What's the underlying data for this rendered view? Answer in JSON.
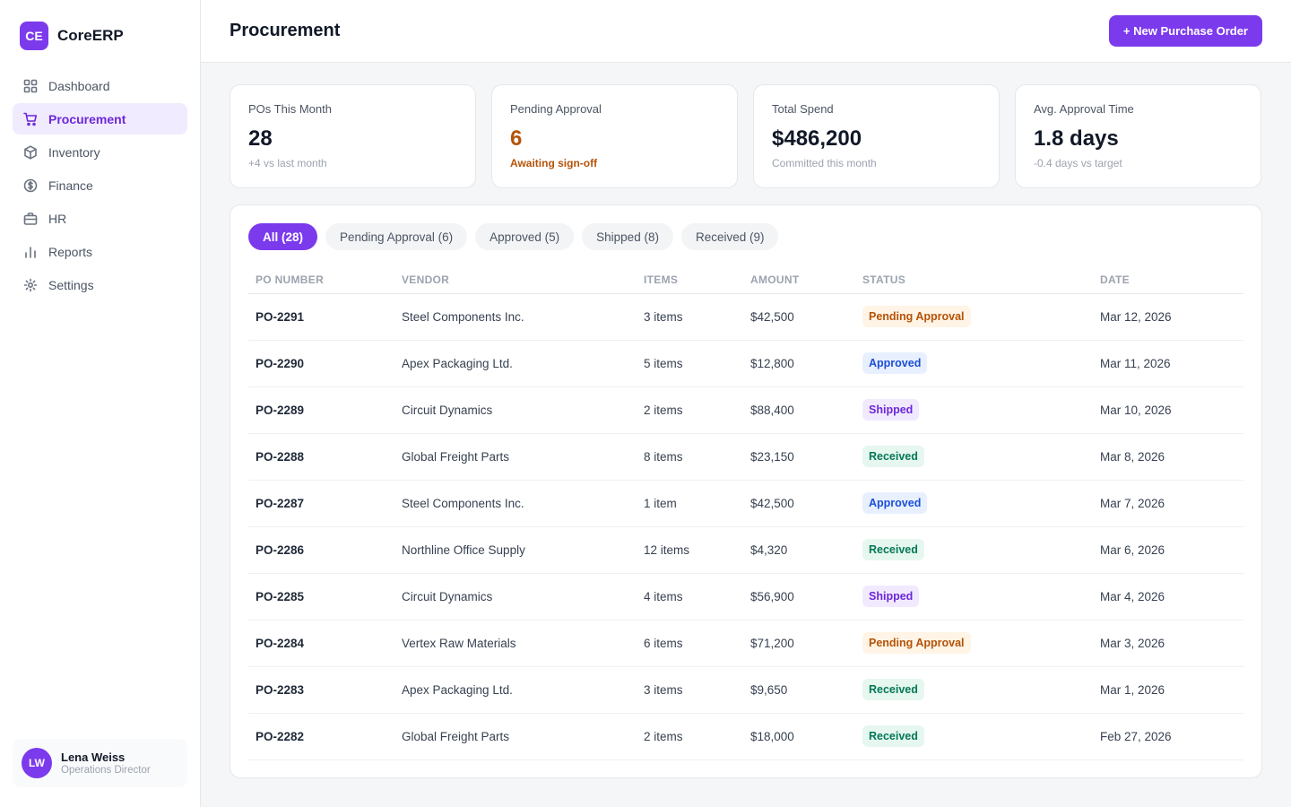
{
  "brand": {
    "logo_text": "CE",
    "name": "CoreERP"
  },
  "sidebar": {
    "items": [
      {
        "label": "Dashboard",
        "icon": "dashboard-icon",
        "active": false
      },
      {
        "label": "Procurement",
        "icon": "cart-icon",
        "active": true
      },
      {
        "label": "Inventory",
        "icon": "box-icon",
        "active": false
      },
      {
        "label": "Finance",
        "icon": "dollar-icon",
        "active": false
      },
      {
        "label": "HR",
        "icon": "briefcase-icon",
        "active": false
      },
      {
        "label": "Reports",
        "icon": "bar-chart-icon",
        "active": false
      },
      {
        "label": "Settings",
        "icon": "gear-icon",
        "active": false
      }
    ]
  },
  "user": {
    "initials": "LW",
    "name": "Lena Weiss",
    "role": "Operations Director"
  },
  "header": {
    "title": "Procurement",
    "new_po_label": "+ New Purchase Order"
  },
  "stats": [
    {
      "label": "POs This Month",
      "value": "28",
      "sub": "+4 vs last month",
      "tone": "normal"
    },
    {
      "label": "Pending Approval",
      "value": "6",
      "sub": "Awaiting sign-off",
      "tone": "warn"
    },
    {
      "label": "Total Spend",
      "value": "$486,200",
      "sub": "Committed this month",
      "tone": "normal"
    },
    {
      "label": "Avg. Approval Time",
      "value": "1.8 days",
      "sub": "-0.4 days vs target",
      "tone": "normal"
    }
  ],
  "filters": [
    {
      "label": "All (28)",
      "active": true
    },
    {
      "label": "Pending Approval (6)",
      "active": false
    },
    {
      "label": "Approved (5)",
      "active": false
    },
    {
      "label": "Shipped (8)",
      "active": false
    },
    {
      "label": "Received (9)",
      "active": false
    }
  ],
  "table": {
    "columns": [
      "PO NUMBER",
      "VENDOR",
      "ITEMS",
      "AMOUNT",
      "STATUS",
      "DATE"
    ],
    "rows": [
      {
        "po": "PO-2291",
        "vendor": "Steel Components Inc.",
        "items": "3 items",
        "amount": "$42,500",
        "status": "Pending Approval",
        "status_kind": "pending",
        "date": "Mar 12, 2026"
      },
      {
        "po": "PO-2290",
        "vendor": "Apex Packaging Ltd.",
        "items": "5 items",
        "amount": "$12,800",
        "status": "Approved",
        "status_kind": "approved",
        "date": "Mar 11, 2026"
      },
      {
        "po": "PO-2289",
        "vendor": "Circuit Dynamics",
        "items": "2 items",
        "amount": "$88,400",
        "status": "Shipped",
        "status_kind": "shipped",
        "date": "Mar 10, 2026"
      },
      {
        "po": "PO-2288",
        "vendor": "Global Freight Parts",
        "items": "8 items",
        "amount": "$23,150",
        "status": "Received",
        "status_kind": "received",
        "date": "Mar 8, 2026"
      },
      {
        "po": "PO-2287",
        "vendor": "Steel Components Inc.",
        "items": "1 item",
        "amount": "$42,500",
        "status": "Approved",
        "status_kind": "approved",
        "date": "Mar 7, 2026"
      },
      {
        "po": "PO-2286",
        "vendor": "Northline Office Supply",
        "items": "12 items",
        "amount": "$4,320",
        "status": "Received",
        "status_kind": "received",
        "date": "Mar 6, 2026"
      },
      {
        "po": "PO-2285",
        "vendor": "Circuit Dynamics",
        "items": "4 items",
        "amount": "$56,900",
        "status": "Shipped",
        "status_kind": "shipped",
        "date": "Mar 4, 2026"
      },
      {
        "po": "PO-2284",
        "vendor": "Vertex Raw Materials",
        "items": "6 items",
        "amount": "$71,200",
        "status": "Pending Approval",
        "status_kind": "pending",
        "date": "Mar 3, 2026"
      },
      {
        "po": "PO-2283",
        "vendor": "Apex Packaging Ltd.",
        "items": "3 items",
        "amount": "$9,650",
        "status": "Received",
        "status_kind": "received",
        "date": "Mar 1, 2026"
      },
      {
        "po": "PO-2282",
        "vendor": "Global Freight Parts",
        "items": "2 items",
        "amount": "$18,000",
        "status": "Received",
        "status_kind": "received",
        "date": "Feb 27, 2026"
      }
    ]
  },
  "colors": {
    "accent": "#7c3aed",
    "pending": "#b45309",
    "approved": "#1d4ed8",
    "shipped": "#6d28d9",
    "received": "#047857"
  }
}
